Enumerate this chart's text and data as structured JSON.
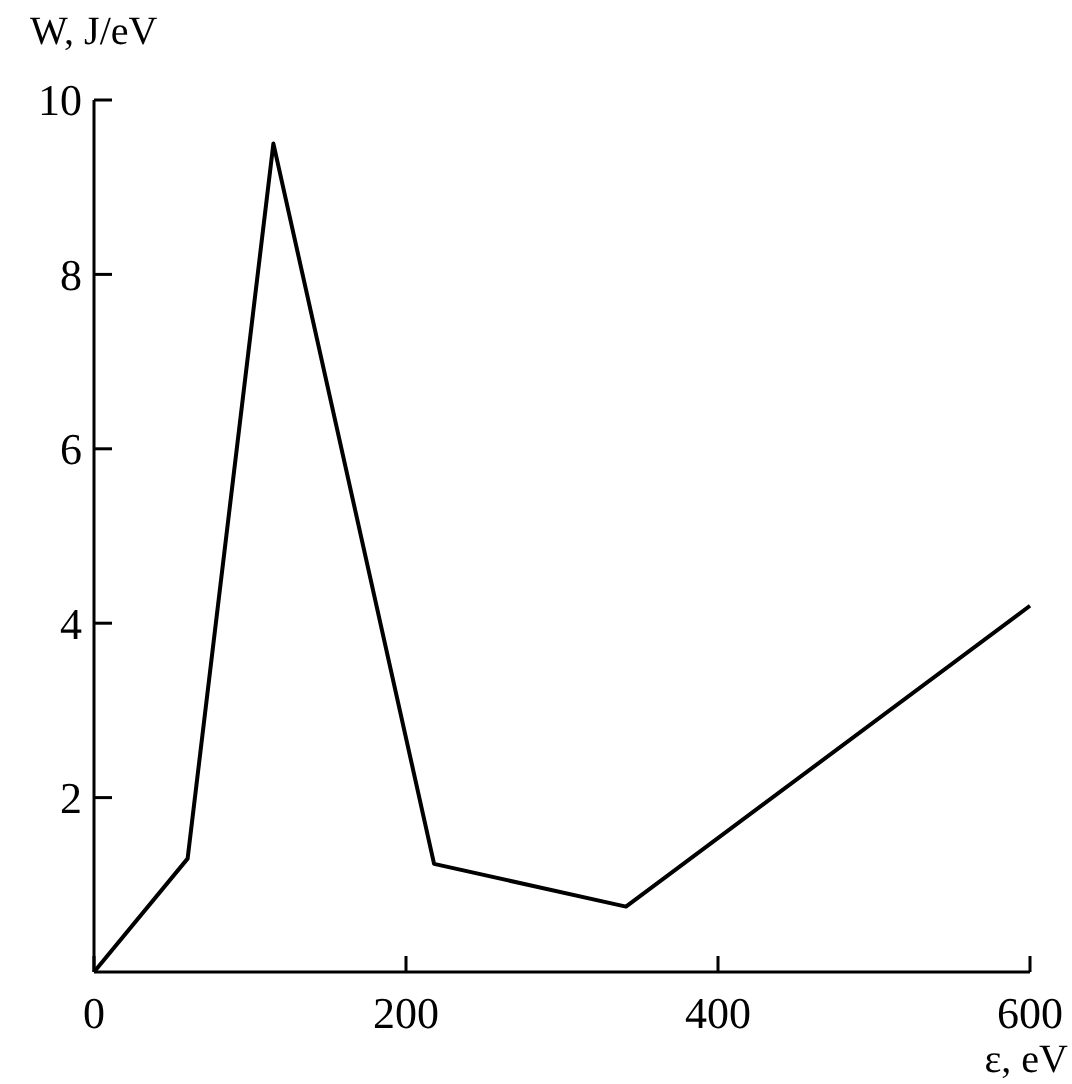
{
  "chart_data": {
    "type": "line",
    "xlabel": "ε, eV",
    "ylabel": "W, J/eV",
    "x": [
      0,
      60,
      115,
      218,
      341,
      600
    ],
    "series": [
      {
        "color": "#000000",
        "values": [
          0,
          1.3,
          9.5,
          1.24,
          0.75,
          4.2
        ]
      }
    ],
    "xlim": [
      0,
      600
    ],
    "xticks": [
      0,
      200,
      400,
      600
    ],
    "ylim": [
      0,
      10
    ],
    "yticks": [
      2,
      4,
      6,
      8,
      10
    ],
    "marker": "none",
    "line_style": "solid",
    "grid": false
  }
}
